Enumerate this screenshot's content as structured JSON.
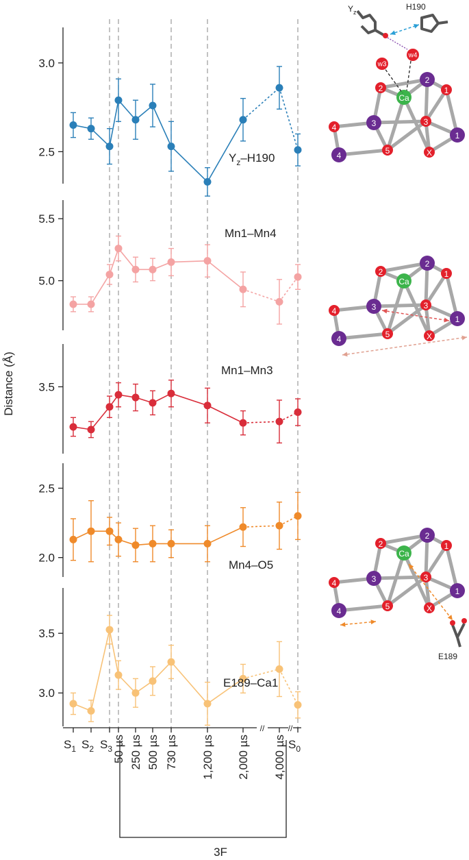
{
  "figure": {
    "y_axis_label": "Distance (Å)",
    "group_label": "3F",
    "axis_break_marks": [
      "//",
      "//"
    ]
  },
  "chart_data": {
    "type": "line",
    "x_categories": [
      {
        "main": "S",
        "sub": "1"
      },
      {
        "main": "S",
        "sub": "2"
      },
      {
        "main": "S",
        "sub": "3"
      },
      {
        "main": "50 µs",
        "sub": ""
      },
      {
        "main": "250 µs",
        "sub": ""
      },
      {
        "main": "500 µs",
        "sub": ""
      },
      {
        "main": "730 µs",
        "sub": ""
      },
      {
        "main": "1,200 µs",
        "sub": ""
      },
      {
        "main": "2,000 µs",
        "sub": ""
      },
      {
        "main": "4,000 µs",
        "sub": ""
      },
      {
        "main": "S",
        "sub": "0"
      }
    ],
    "dashed_reference_columns": [
      2,
      3,
      6,
      7,
      10
    ],
    "series": [
      {
        "name": "Yz–H190",
        "label_main": "Y",
        "label_sub": "z",
        "label_rest": "–H190",
        "color": "#2a7fb8",
        "ylim": [
          2.32,
          3.2
        ],
        "ticks": [
          "2.5",
          "3.0"
        ],
        "tick_values": [
          2.5,
          3.0
        ],
        "values": [
          2.65,
          2.63,
          2.53,
          2.79,
          2.68,
          2.76,
          2.53,
          2.33,
          2.68,
          2.86,
          2.51
        ],
        "errors": [
          0.07,
          0.06,
          0.1,
          0.12,
          0.11,
          0.12,
          0.14,
          0.08,
          0.12,
          0.12,
          0.09
        ],
        "dotted_segments": [
          [
            8,
            9
          ],
          [
            9,
            10
          ]
        ]
      },
      {
        "name": "Mn1–Mn4",
        "color": "#f4a3a3",
        "ylim": [
          4.6,
          5.65
        ],
        "ticks": [
          "5.0",
          "5.5"
        ],
        "tick_values": [
          5.0,
          5.5
        ],
        "values": [
          4.81,
          4.81,
          5.05,
          5.26,
          5.09,
          5.09,
          5.15,
          5.16,
          4.93,
          4.83,
          5.03
        ],
        "errors": [
          0.06,
          0.06,
          0.08,
          0.1,
          0.1,
          0.09,
          0.11,
          0.13,
          0.14,
          0.18,
          0.1
        ],
        "dotted_segments": [
          [
            8,
            9
          ],
          [
            9,
            10
          ]
        ]
      },
      {
        "name": "Mn1–Mn3",
        "color": "#d92d3a",
        "ylim": [
          3.0,
          3.82
        ],
        "ticks": [
          "3.5"
        ],
        "tick_values": [
          3.5
        ],
        "values": [
          3.2,
          3.18,
          3.35,
          3.44,
          3.42,
          3.38,
          3.45,
          3.36,
          3.23,
          3.24,
          3.31
        ],
        "errors": [
          0.07,
          0.06,
          0.08,
          0.09,
          0.1,
          0.09,
          0.1,
          0.13,
          0.09,
          0.16,
          0.1
        ],
        "dotted_segments": [
          [
            8,
            9
          ],
          [
            9,
            10
          ]
        ]
      },
      {
        "name": "Mn4–O5",
        "color": "#ef8a2a",
        "ylim": [
          1.86,
          2.68
        ],
        "ticks": [
          "2.0",
          "2.5"
        ],
        "tick_values": [
          2.0,
          2.5
        ],
        "values": [
          2.13,
          2.19,
          2.19,
          2.13,
          2.09,
          2.1,
          2.1,
          2.1,
          2.22,
          2.23,
          2.3
        ],
        "errors": [
          0.15,
          0.22,
          0.1,
          0.12,
          0.12,
          0.13,
          0.1,
          0.13,
          0.14,
          0.17,
          0.17
        ],
        "dotted_segments": [
          [
            8,
            9
          ],
          [
            9,
            10
          ]
        ]
      },
      {
        "name": "E189–Ca1",
        "color": "#f8c277",
        "ylim": [
          2.72,
          3.88
        ],
        "ticks": [
          "3.0",
          "3.5"
        ],
        "tick_values": [
          3.0,
          3.5
        ],
        "values": [
          2.91,
          2.85,
          3.53,
          3.15,
          3.0,
          3.1,
          3.26,
          2.91,
          3.12,
          3.2,
          2.9
        ],
        "errors": [
          0.09,
          0.09,
          0.12,
          0.12,
          0.12,
          0.12,
          0.14,
          0.18,
          0.12,
          0.23,
          0.11
        ],
        "dotted_segments": [
          [
            8,
            9
          ],
          [
            9,
            10
          ]
        ]
      }
    ]
  },
  "diagrams": {
    "top": {
      "labels": {
        "yz": "Y",
        "yz_sub": "z",
        "h190": "H190",
        "w3": "w3",
        "w4": "w4"
      }
    },
    "nodes": {
      "ca": "Ca",
      "o1": "1",
      "o2": "2",
      "o3": "3",
      "o4": "4",
      "o5": "5",
      "ox": "X",
      "mn1": "1",
      "mn2": "2",
      "mn3": "3",
      "mn4": "4"
    },
    "bottom": {
      "residue": "E189"
    },
    "colors": {
      "mn": "#6a2c91",
      "o": "#e3202b",
      "ca": "#3cb44b",
      "bond": "#a8a8a8",
      "arrow_blue": "#2a9fd6",
      "arrow_purple": "#8a4fb0",
      "arrow_red": "#e05555",
      "arrow_pink": "#e0a090",
      "arrow_orange": "#ef8a2a"
    }
  }
}
